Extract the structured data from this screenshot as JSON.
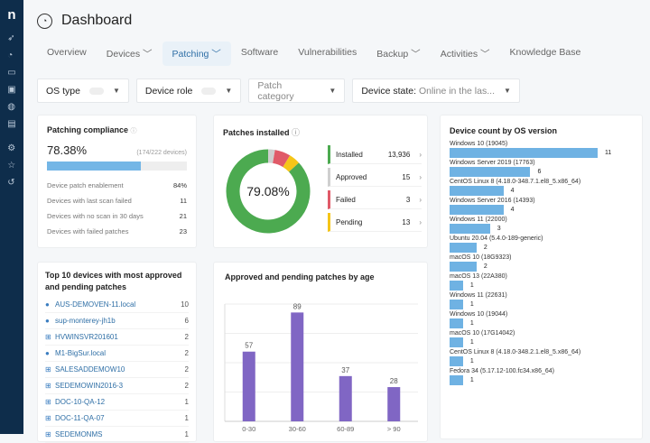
{
  "sidebar": {
    "logo": "n",
    "icons": [
      "rocket-icon",
      "gauge-icon",
      "devices-icon",
      "monitors-icon",
      "globe-icon",
      "ticket-icon",
      "gear-icon",
      "star-icon",
      "history-icon"
    ]
  },
  "header": {
    "title": "Dashboard"
  },
  "tabs": [
    {
      "label": "Overview"
    },
    {
      "label": "Devices ﹀"
    },
    {
      "label": "Patching ﹀",
      "active": true
    },
    {
      "label": "Software"
    },
    {
      "label": "Vulnerabilities"
    },
    {
      "label": "Backup ﹀"
    },
    {
      "label": "Activities ﹀"
    },
    {
      "label": "Knowledge Base"
    }
  ],
  "filters": {
    "os_type": "OS type",
    "device_role": "Device role",
    "patch_category": "Patch category",
    "device_state_label": "Device state:",
    "device_state_value": "Online in the las..."
  },
  "compliance": {
    "title": "Patching compliance",
    "percent": "78.38%",
    "devices": "(174/222 devices)",
    "progress": 78.38,
    "rows": [
      {
        "label": "Device patch enablement",
        "value": "84%"
      },
      {
        "label": "Devices with last scan failed",
        "value": "11"
      },
      {
        "label": "Devices with no scan in 30 days",
        "value": "21"
      },
      {
        "label": "Devices with failed patches",
        "value": "23"
      }
    ]
  },
  "patches": {
    "title": "Patches installed",
    "center": "79.08%",
    "items": [
      {
        "label": "Installed",
        "value": "13,936",
        "color": "#4caa50"
      },
      {
        "label": "Approved",
        "value": "15",
        "color": "#cfcfcf"
      },
      {
        "label": "Failed",
        "value": "3",
        "color": "#e05a68"
      },
      {
        "label": "Pending",
        "value": "13",
        "color": "#f5c518"
      }
    ]
  },
  "top10": {
    "title": "Top 10 devices with most approved and pending patches",
    "items": [
      {
        "os": "apple",
        "name": "AUS-DEMOVEN-11.local",
        "count": "10"
      },
      {
        "os": "apple",
        "name": "sup-monterey-jh1b",
        "count": "6"
      },
      {
        "os": "windows",
        "name": "HVWINSVR201601",
        "count": "2"
      },
      {
        "os": "apple",
        "name": "M1-BigSur.local",
        "count": "2"
      },
      {
        "os": "windows",
        "name": "SALESADDEMOW10",
        "count": "2"
      },
      {
        "os": "windows",
        "name": "SEDEMOWIN2016-3",
        "count": "2"
      },
      {
        "os": "windows",
        "name": "DOC-10-QA-12",
        "count": "1"
      },
      {
        "os": "windows",
        "name": "DOC-11-QA-07",
        "count": "1"
      },
      {
        "os": "windows",
        "name": "SEDEMONMS",
        "count": "1"
      }
    ]
  },
  "chart_data": [
    {
      "type": "bar",
      "title": "Approved and pending patches by age",
      "categories": [
        "0-30",
        "30-60",
        "60-89",
        "> 90"
      ],
      "values": [
        57,
        89,
        37,
        28
      ],
      "ylim": [
        0,
        90
      ],
      "grid": true,
      "color": "#8066c4"
    },
    {
      "type": "bar",
      "orientation": "horizontal",
      "title": "Device count by OS version",
      "categories": [
        "Windows 10 (19045)",
        "Windows Server 2019 (17763)",
        "CentOS Linux 8 (4.18.0-348.7.1.el8_5.x86_64)",
        "Windows Server 2016 (14393)",
        "Windows 11 (22000)",
        "Ubuntu 20.04 (5.4.0-189-generic)",
        "macOS 10 (18G9323)",
        "macOS 13 (22A380)",
        "Windows 11 (22631)",
        "Windows 10 (19044)",
        "macOS 10 (17G14042)",
        "CentOS Linux 8 (4.18.0-348.2.1.el8_5.x86_64)",
        "Fedora 34 (5.17.12-100.fc34.x86_64)"
      ],
      "values": [
        11,
        6,
        4,
        4,
        3,
        2,
        2,
        1,
        1,
        1,
        1,
        1,
        1
      ],
      "color": "#6fb2e3"
    }
  ]
}
